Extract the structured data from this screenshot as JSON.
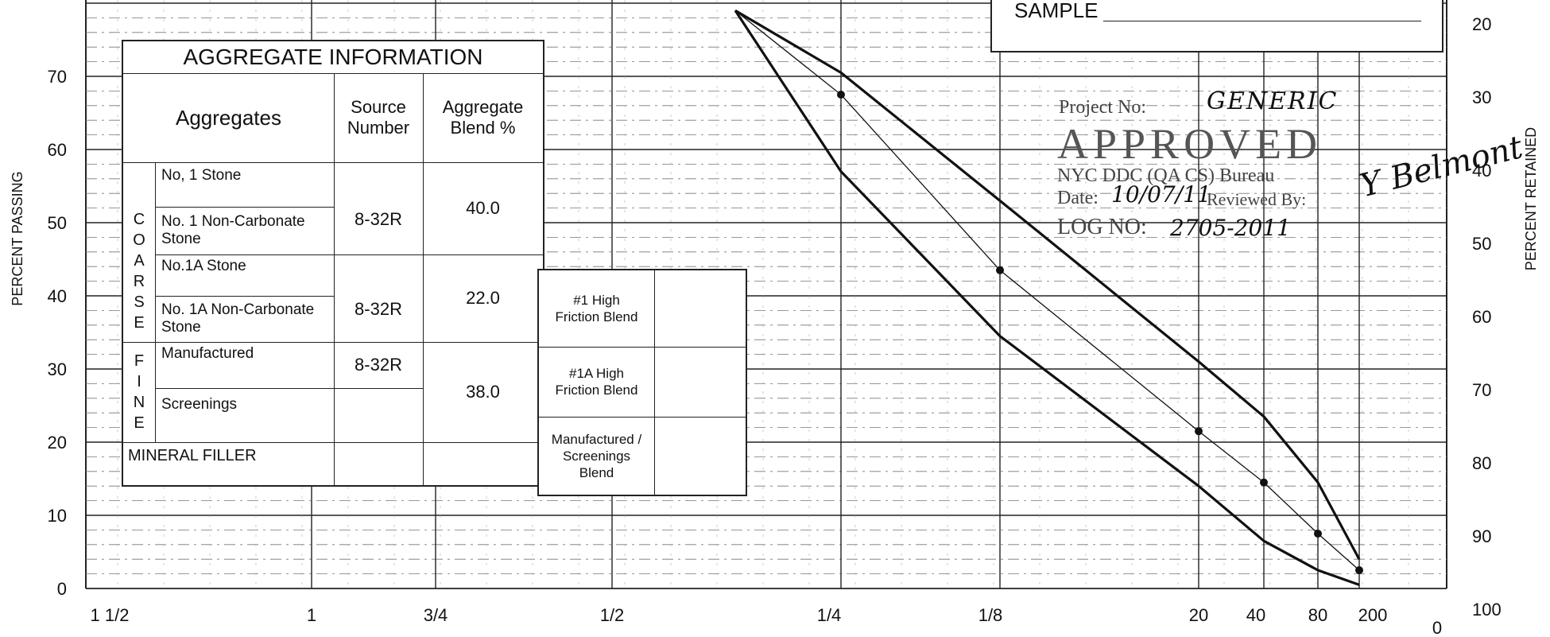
{
  "chart_data": {
    "type": "line",
    "xlabel": "",
    "ylabel": "PERCENT PASSING",
    "ylabel_right": "PERCENT RETAINED",
    "x_ticks": [
      "1 1/2",
      "1",
      "3/4",
      "1/2",
      "1/4",
      "1/8",
      "20",
      "40",
      "80",
      "200"
    ],
    "y_ticks_left": [
      "0",
      "10",
      "20",
      "30",
      "40",
      "50",
      "60",
      "70"
    ],
    "y_ticks_right": [
      "100",
      "90",
      "80",
      "70",
      "60",
      "50",
      "40",
      "30",
      "20"
    ],
    "x_right_end_label": "0",
    "ylim": [
      0,
      79
    ],
    "grid": true,
    "series": [
      {
        "style": "heavy",
        "x": [
          "3/8",
          "1/4",
          "1/8",
          "20",
          "40",
          "80",
          "200"
        ],
        "values": [
          79,
          70.5,
          53,
          31,
          23.5,
          14.5,
          4
        ]
      },
      {
        "style": "thin-with-points",
        "x": [
          "3/8",
          "1/4",
          "1/8",
          "20",
          "40",
          "80",
          "200"
        ],
        "values": [
          79,
          67.5,
          43.5,
          21.5,
          14.5,
          7.5,
          2.5
        ],
        "points": [
          [
            4,
            67.5
          ],
          [
            5,
            43.5
          ],
          [
            6,
            21.5
          ],
          [
            7,
            14.5
          ],
          [
            8,
            7.5
          ],
          [
            9,
            2.5
          ]
        ]
      },
      {
        "style": "heavy",
        "x": [
          "3/8",
          "1/4",
          "1/8",
          "20",
          "40",
          "80",
          "200"
        ],
        "values": [
          79,
          57,
          34.5,
          14,
          6.5,
          2.5,
          0.5
        ]
      }
    ]
  },
  "aggregate_table": {
    "title": "AGGREGATE INFORMATION",
    "headers": {
      "aggregates": "Aggregates",
      "source": "Source Number",
      "blend": "Aggregate Blend %"
    },
    "coarse_letters": [
      "C",
      "O",
      "A",
      "R",
      "S",
      "E"
    ],
    "fine_letters": [
      "F",
      "I",
      "N",
      "E"
    ],
    "rows": [
      {
        "name": "No, 1 Stone",
        "source": ""
      },
      {
        "name": "No. 1 Non-Carbonate Stone",
        "source": "8-32R"
      },
      {
        "name": "No.1A Stone",
        "source": ""
      },
      {
        "name": "No. 1A Non-Carbonate Stone",
        "source": "8-32R"
      },
      {
        "name": "Manufactured",
        "source": "8-32R"
      },
      {
        "name": "Screenings",
        "source": ""
      }
    ],
    "blends": [
      "40.0",
      "22.0",
      "38.0"
    ],
    "mineral_filler": "MINERAL FILLER"
  },
  "friction_table": {
    "rows": [
      {
        "label": "#1 High Friction Blend",
        "value": ""
      },
      {
        "label": "#1A High Friction Blend",
        "value": ""
      },
      {
        "label": "Manufactured / Screenings Blend",
        "value": ""
      }
    ]
  },
  "sample_box": {
    "label": "SAMPLE"
  },
  "stamp": {
    "project_label": "Project No:",
    "project_value": "GENERIC",
    "approved": "APPROVED",
    "bureau": "NYC DDC (QA CS) Bureau",
    "date_label": "Date:",
    "date_value": "10/07/11",
    "reviewed_label": "Reviewed By:",
    "reviewed_value": "Y Belmont",
    "log_label": "LOG NO:",
    "log_value": "2705-2011"
  }
}
